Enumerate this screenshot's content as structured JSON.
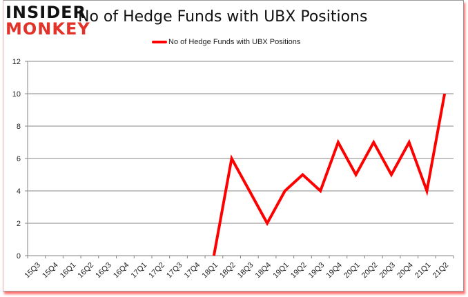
{
  "logo": {
    "line1": "INSIDER",
    "line2": "MONKEY"
  },
  "title": "No of Hedge Funds with UBX Positions",
  "legend": {
    "label": "No of Hedge Funds with UBX Positions",
    "color": "#ff0000"
  },
  "chart_data": {
    "type": "line",
    "title": "No of Hedge Funds with UBX Positions",
    "xlabel": "",
    "ylabel": "",
    "ylim": [
      0,
      12
    ],
    "yticks": [
      0,
      2,
      4,
      6,
      8,
      10,
      12
    ],
    "grid": true,
    "legend_position": "top",
    "categories": [
      "15Q3",
      "15Q4",
      "16Q1",
      "16Q2",
      "16Q3",
      "16Q4",
      "17Q1",
      "17Q2",
      "17Q3",
      "17Q4",
      "18Q1",
      "18Q2",
      "18Q3",
      "18Q4",
      "19Q1",
      "19Q2",
      "19Q3",
      "19Q4",
      "20Q1",
      "20Q2",
      "20Q3",
      "20Q4",
      "21Q1",
      "21Q2"
    ],
    "series": [
      {
        "name": "No of Hedge Funds with UBX Positions",
        "color": "#ff0000",
        "values": [
          null,
          null,
          null,
          null,
          null,
          null,
          null,
          null,
          null,
          null,
          0,
          6,
          4,
          2,
          4,
          5,
          4,
          7,
          5,
          7,
          5,
          7,
          4,
          10
        ]
      }
    ]
  }
}
